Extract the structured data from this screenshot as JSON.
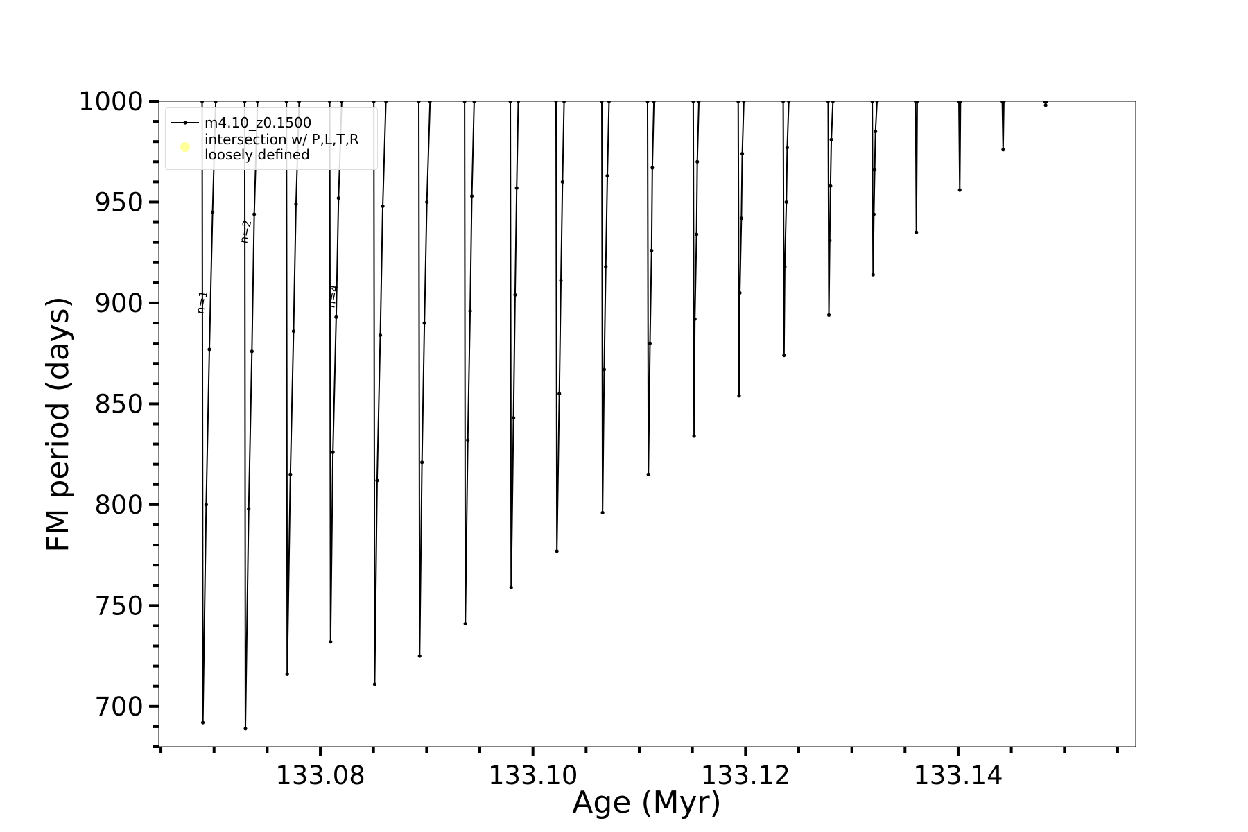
{
  "chart_data": {
    "type": "line",
    "xlabel": "Age (Myr)",
    "ylabel": "FM period (days)",
    "xlim": [
      133.0648,
      133.1567
    ],
    "ylim": [
      680,
      1000
    ],
    "xticks": [
      133.08,
      {
        "value": 133.1,
        "label": "133.10"
      },
      133.12,
      133.14
    ],
    "xticks_minor": [
      133.065,
      133.07,
      133.075,
      133.085,
      133.09,
      133.095,
      133.105,
      133.11,
      133.115,
      133.125,
      133.13,
      133.135,
      133.145,
      133.15,
      133.155
    ],
    "yticks": [
      700,
      750,
      800,
      850,
      900,
      950,
      1000
    ],
    "yticks_minor": [
      680,
      690,
      710,
      720,
      730,
      740,
      760,
      770,
      780,
      790,
      810,
      820,
      830,
      840,
      860,
      870,
      880,
      890,
      910,
      920,
      930,
      940,
      960,
      970,
      980,
      990
    ],
    "legend": "upper left",
    "annotations": [
      {
        "text": "n=1",
        "x": 133.0692,
        "y": 900
      },
      {
        "text": "n=2",
        "x": 133.0733,
        "y": 935
      },
      {
        "text": "n=4",
        "x": 133.0815,
        "y": 903
      }
    ],
    "series": [
      {
        "name": "m4.10_z0.1500",
        "type": "line",
        "color": "#000000",
        "x": [
          133.06888,
          133.06895,
          133.06926,
          133.06956,
          133.06986,
          133.07016,
          null,
          133.07288,
          133.07295,
          133.07326,
          133.07356,
          133.07378,
          133.07409,
          null,
          133.07681,
          133.07688,
          133.07718,
          133.07748,
          133.07771,
          133.07801,
          null,
          133.08088,
          133.08096,
          133.08118,
          133.08149,
          133.08171,
          133.08201,
          null,
          133.08503,
          133.08511,
          133.08534,
          133.08564,
          133.08587,
          133.08617,
          null,
          133.08926,
          133.08934,
          133.08956,
          133.08979,
          133.09002,
          133.09032,
          null,
          133.09357,
          133.09364,
          133.09387,
          133.09409,
          133.09425,
          133.09447,
          null,
          133.09787,
          133.09795,
          133.09817,
          133.09832,
          133.09847,
          133.09862,
          null,
          133.10217,
          133.10225,
          133.10248,
          133.10263,
          133.10278,
          133.10293,
          null,
          133.10648,
          133.10655,
          133.1067,
          133.10685,
          133.107,
          133.10716,
          null,
          133.11078,
          133.11086,
          133.11101,
          133.11116,
          133.11123,
          133.11138,
          null,
          133.11508,
          133.11516,
          133.11523,
          133.11539,
          133.11546,
          133.11561,
          null,
          133.11931,
          133.11939,
          133.11946,
          133.11961,
          133.11969,
          133.11984,
          null,
          133.12354,
          133.12362,
          133.12369,
          133.12384,
          133.12392,
          133.12407,
          null,
          133.12777,
          133.12784,
          133.12792,
          133.12799,
          133.12807,
          133.12822,
          null,
          133.13192,
          133.132,
          133.13207,
          133.13215,
          133.13222,
          133.13237,
          null,
          133.136,
          133.13607,
          133.13615,
          null,
          133.14007,
          133.14015,
          133.14022,
          null,
          133.14415,
          133.14423,
          133.1443,
          null,
          133.14815,
          133.14823,
          133.1483
        ],
        "values": [
          1000,
          692,
          800,
          877,
          945,
          1000,
          null,
          1000,
          689,
          798,
          876,
          944,
          1000,
          null,
          1000,
          716,
          815,
          886,
          949,
          1000,
          null,
          1000,
          732,
          826,
          893,
          952,
          1000,
          null,
          1000,
          711,
          812,
          884,
          948,
          1000,
          null,
          1000,
          725,
          821,
          890,
          950,
          1000,
          null,
          1000,
          741,
          832,
          896,
          953,
          1000,
          null,
          1000,
          759,
          843,
          904,
          957,
          1000,
          null,
          1000,
          777,
          855,
          911,
          960,
          1000,
          null,
          1000,
          796,
          867,
          918,
          963,
          1000,
          null,
          1000,
          815,
          880,
          926,
          967,
          1000,
          null,
          1000,
          834,
          892,
          934,
          970,
          1000,
          null,
          1000,
          854,
          905,
          942,
          974,
          1000,
          null,
          1000,
          874,
          918,
          950,
          977,
          1000,
          null,
          1000,
          894,
          931,
          958,
          981,
          1000,
          null,
          1000,
          914,
          944,
          966,
          985,
          1000,
          null,
          1000,
          935,
          1000,
          null,
          1000,
          956,
          1000,
          null,
          1000,
          976,
          1000,
          null,
          1000,
          998,
          1000
        ]
      },
      {
        "name": "intersection w/ P,L,T,R\nloosely defined",
        "type": "scatter",
        "color": "#ffff99",
        "x": [],
        "values": []
      }
    ]
  }
}
